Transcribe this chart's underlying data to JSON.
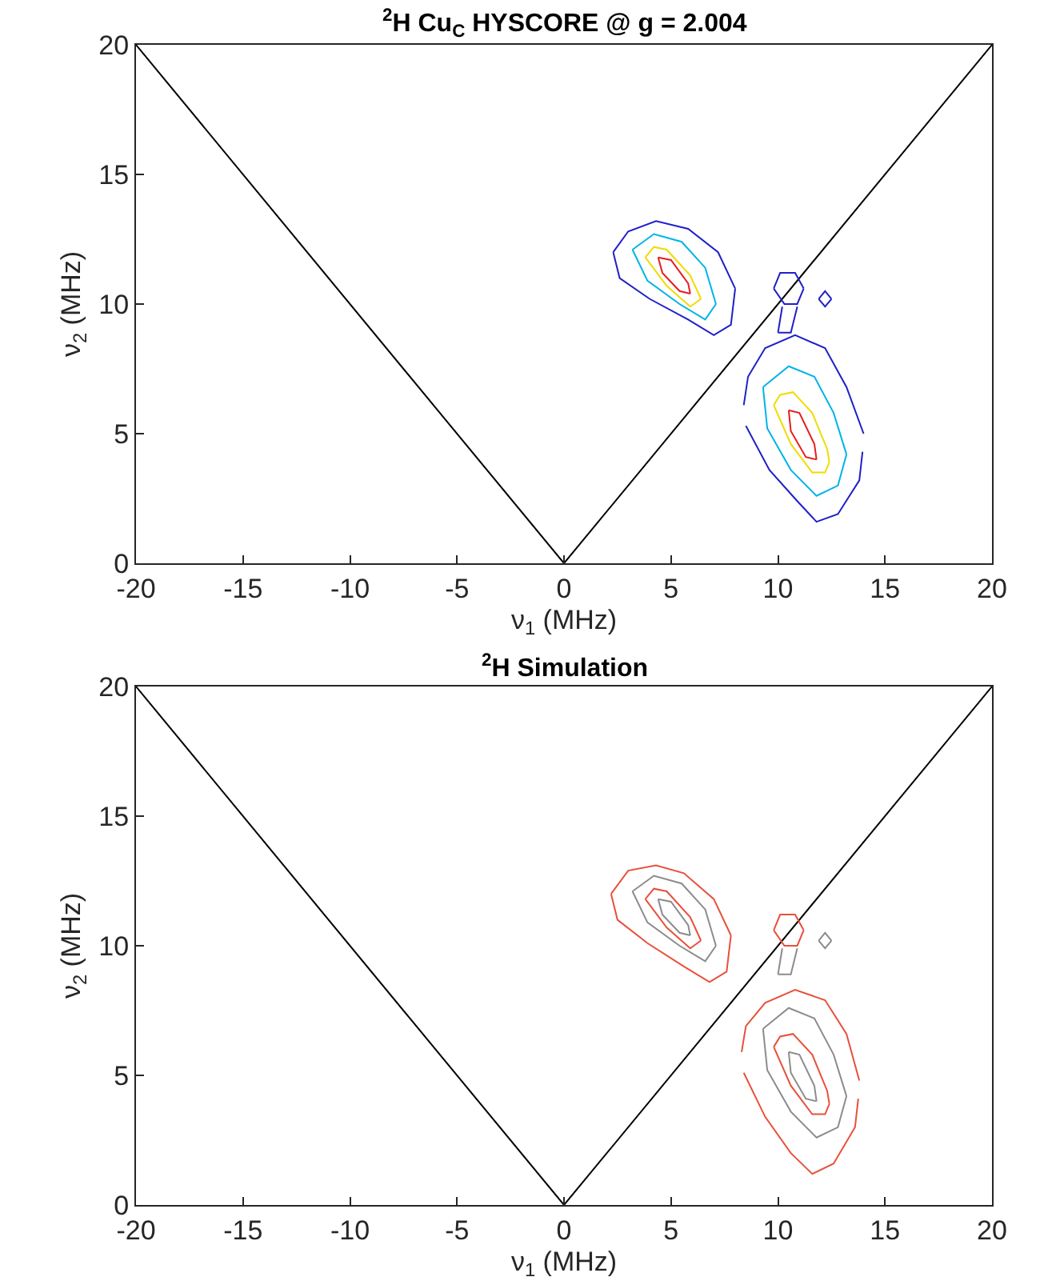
{
  "chart_data": [
    {
      "type": "line",
      "title": "$^{2}$H Cu$_{C}$ HYSCORE @ g = 2.004",
      "xlabel": "ν$_{1}$ (MHz)",
      "ylabel": "ν$_{2}$ (MHz)",
      "xlim": [
        -20,
        20
      ],
      "ylim": [
        0,
        20
      ],
      "xticks": [
        -20,
        -15,
        -10,
        -5,
        0,
        5,
        10,
        15,
        20
      ],
      "yticks": [
        0,
        5,
        10,
        15,
        20
      ],
      "marker": "none",
      "line_style": "solid",
      "series": [
        {
          "color": "#000000",
          "x": [
            -20,
            0,
            20
          ],
          "values": [
            20,
            0,
            20
          ]
        },
        {
          "color": "#2020c8",
          "x": [
            2.3,
            3.0,
            4.3,
            5.8,
            7.2,
            8.0
          ],
          "values": [
            12.0,
            12.8,
            13.2,
            12.9,
            12.0,
            10.6
          ]
        },
        {
          "color": "#2020c8",
          "x": [
            2.3,
            2.6,
            4.0,
            5.8,
            7.0,
            7.8,
            8.0
          ],
          "values": [
            12.0,
            11.0,
            10.2,
            9.4,
            8.8,
            9.2,
            10.6
          ]
        },
        {
          "color": "#00b4e6",
          "x": [
            3.2,
            4.2,
            5.5,
            6.6,
            7.1
          ],
          "values": [
            12.1,
            12.7,
            12.4,
            11.4,
            10.0
          ]
        },
        {
          "color": "#00b4e6",
          "x": [
            3.2,
            3.9,
            5.4,
            6.6,
            7.1
          ],
          "values": [
            12.1,
            10.9,
            10.0,
            9.4,
            10.0
          ]
        },
        {
          "color": "#f0dc00",
          "x": [
            3.8,
            4.2,
            4.8,
            5.9,
            6.4
          ],
          "values": [
            11.8,
            12.2,
            12.1,
            11.1,
            10.2
          ]
        },
        {
          "color": "#f0dc00",
          "x": [
            3.8,
            4.8,
            5.9,
            6.4
          ],
          "values": [
            11.8,
            10.7,
            9.9,
            10.2
          ]
        },
        {
          "color": "#e61e1e",
          "x": [
            4.4,
            5.0,
            5.8,
            5.9
          ],
          "values": [
            11.8,
            11.7,
            10.8,
            10.4
          ]
        },
        {
          "color": "#e61e1e",
          "x": [
            4.4,
            4.6,
            5.4,
            5.9
          ],
          "values": [
            11.8,
            11.2,
            10.5,
            10.4
          ]
        },
        {
          "color": "#2020c8",
          "x": [
            8.4,
            8.6,
            9.4,
            10.8,
            12.2,
            13.2,
            14.0
          ],
          "values": [
            6.1,
            7.2,
            8.3,
            8.8,
            8.3,
            6.8,
            5.0
          ]
        },
        {
          "color": "#2020c8",
          "x": [
            8.5,
            9.6,
            10.9,
            11.8,
            12.8,
            13.8,
            13.95
          ],
          "values": [
            5.3,
            3.6,
            2.4,
            1.6,
            1.9,
            3.2,
            4.3
          ]
        },
        {
          "color": "#00b4e6",
          "x": [
            9.3,
            10.5,
            11.7,
            12.6,
            13.2
          ],
          "values": [
            6.8,
            7.6,
            7.2,
            5.8,
            4.2
          ]
        },
        {
          "color": "#00b4e6",
          "x": [
            9.3,
            9.5,
            10.6,
            11.8,
            12.8,
            13.2
          ],
          "values": [
            6.8,
            5.2,
            3.6,
            2.6,
            3.0,
            4.2
          ]
        },
        {
          "color": "#f0dc00",
          "x": [
            9.8,
            10.1,
            10.7,
            11.6,
            12.3,
            12.4
          ],
          "values": [
            6.1,
            6.5,
            6.6,
            5.8,
            4.4,
            3.9
          ]
        },
        {
          "color": "#f0dc00",
          "x": [
            9.8,
            10.6,
            11.6,
            12.2,
            12.4
          ],
          "values": [
            6.1,
            4.6,
            3.5,
            3.5,
            3.9
          ]
        },
        {
          "color": "#e61e1e",
          "x": [
            10.5,
            11.0,
            11.7,
            11.8
          ],
          "values": [
            5.9,
            5.8,
            4.6,
            4.0
          ]
        },
        {
          "color": "#e61e1e",
          "x": [
            10.5,
            10.6,
            11.3,
            11.8
          ],
          "values": [
            5.9,
            5.1,
            4.1,
            4.0
          ]
        },
        {
          "color": "#2020c8",
          "x": [
            9.8,
            10.1,
            10.8,
            11.2
          ],
          "values": [
            10.6,
            11.2,
            11.2,
            10.6
          ]
        },
        {
          "color": "#2020c8",
          "x": [
            9.8,
            10.3,
            10.9,
            11.2
          ],
          "values": [
            10.6,
            10.0,
            10.0,
            10.6
          ]
        },
        {
          "color": "#2020c8",
          "x": [
            10.0,
            10.2
          ],
          "values": [
            8.9,
            9.9
          ]
        },
        {
          "color": "#2020c8",
          "x": [
            10.0,
            10.6,
            10.9
          ],
          "values": [
            8.9,
            8.9,
            9.9
          ]
        },
        {
          "color": "#2020c8",
          "x": [
            11.9,
            12.2,
            12.5
          ],
          "values": [
            10.2,
            10.5,
            10.2
          ]
        },
        {
          "color": "#2020c8",
          "x": [
            11.9,
            12.2,
            12.5
          ],
          "values": [
            10.2,
            9.9,
            10.2
          ]
        }
      ]
    },
    {
      "type": "line",
      "title": "$^{2}$H Simulation",
      "xlabel": "ν$_{1}$ (MHz)",
      "ylabel": "ν$_{2}$ (MHz)",
      "xlim": [
        -20,
        20
      ],
      "ylim": [
        0,
        20
      ],
      "xticks": [
        -20,
        -15,
        -10,
        -5,
        0,
        5,
        10,
        15,
        20
      ],
      "yticks": [
        0,
        5,
        10,
        15,
        20
      ],
      "marker": "none",
      "line_style": "solid",
      "series": [
        {
          "color": "#000000",
          "x": [
            -20,
            0,
            20
          ],
          "values": [
            20,
            0,
            20
          ]
        },
        {
          "color": "#e8503c",
          "x": [
            2.2,
            3.0,
            4.3,
            5.6,
            7.0,
            7.8
          ],
          "values": [
            12.0,
            12.9,
            13.1,
            12.8,
            11.8,
            10.4
          ]
        },
        {
          "color": "#e8503c",
          "x": [
            2.2,
            2.5,
            3.9,
            5.6,
            6.8,
            7.6,
            7.8
          ],
          "values": [
            12.0,
            11.0,
            10.1,
            9.2,
            8.6,
            9.0,
            10.4
          ]
        },
        {
          "color": "#8c8c8c",
          "x": [
            3.2,
            4.2,
            5.5,
            6.6,
            7.1
          ],
          "values": [
            12.1,
            12.7,
            12.4,
            11.4,
            10.0
          ]
        },
        {
          "color": "#8c8c8c",
          "x": [
            3.2,
            3.9,
            5.4,
            6.6,
            7.1
          ],
          "values": [
            12.1,
            10.9,
            10.0,
            9.4,
            10.0
          ]
        },
        {
          "color": "#e8503c",
          "x": [
            3.8,
            4.2,
            4.8,
            5.9,
            6.4
          ],
          "values": [
            11.8,
            12.2,
            12.1,
            11.1,
            10.2
          ]
        },
        {
          "color": "#e8503c",
          "x": [
            3.8,
            4.8,
            5.9,
            6.4
          ],
          "values": [
            11.8,
            10.7,
            9.9,
            10.2
          ]
        },
        {
          "color": "#8c8c8c",
          "x": [
            4.4,
            5.0,
            5.8,
            5.9
          ],
          "values": [
            11.8,
            11.7,
            10.8,
            10.4
          ]
        },
        {
          "color": "#8c8c8c",
          "x": [
            4.4,
            4.6,
            5.4,
            5.9
          ],
          "values": [
            11.8,
            11.2,
            10.5,
            10.4
          ]
        },
        {
          "color": "#e8503c",
          "x": [
            8.3,
            8.5,
            9.4,
            10.8,
            12.2,
            13.2,
            13.8
          ],
          "values": [
            5.9,
            6.9,
            7.8,
            8.3,
            7.9,
            6.6,
            4.8
          ]
        },
        {
          "color": "#e8503c",
          "x": [
            8.4,
            9.4,
            10.6,
            11.6,
            12.6,
            13.6,
            13.75
          ],
          "values": [
            5.1,
            3.4,
            2.0,
            1.2,
            1.6,
            3.0,
            4.1
          ]
        },
        {
          "color": "#8c8c8c",
          "x": [
            9.3,
            10.5,
            11.7,
            12.6,
            13.2
          ],
          "values": [
            6.8,
            7.6,
            7.2,
            5.8,
            4.2
          ]
        },
        {
          "color": "#8c8c8c",
          "x": [
            9.3,
            9.5,
            10.6,
            11.8,
            12.8,
            13.2
          ],
          "values": [
            6.8,
            5.2,
            3.6,
            2.6,
            3.0,
            4.2
          ]
        },
        {
          "color": "#e8503c",
          "x": [
            9.8,
            10.1,
            10.7,
            11.6,
            12.3,
            12.4
          ],
          "values": [
            6.1,
            6.5,
            6.6,
            5.8,
            4.4,
            3.9
          ]
        },
        {
          "color": "#e8503c",
          "x": [
            9.8,
            10.6,
            11.6,
            12.2,
            12.4
          ],
          "values": [
            6.1,
            4.6,
            3.5,
            3.5,
            3.9
          ]
        },
        {
          "color": "#8c8c8c",
          "x": [
            10.5,
            11.0,
            11.7,
            11.8
          ],
          "values": [
            5.9,
            5.8,
            4.6,
            4.0
          ]
        },
        {
          "color": "#8c8c8c",
          "x": [
            10.5,
            10.6,
            11.3,
            11.8
          ],
          "values": [
            5.9,
            5.1,
            4.1,
            4.0
          ]
        },
        {
          "color": "#e8503c",
          "x": [
            9.8,
            10.1,
            10.8,
            11.2
          ],
          "values": [
            10.6,
            11.2,
            11.2,
            10.6
          ]
        },
        {
          "color": "#e8503c",
          "x": [
            9.8,
            10.3,
            10.9,
            11.2
          ],
          "values": [
            10.6,
            10.0,
            10.0,
            10.6
          ]
        },
        {
          "color": "#8c8c8c",
          "x": [
            10.0,
            10.2
          ],
          "values": [
            8.9,
            9.9
          ]
        },
        {
          "color": "#8c8c8c",
          "x": [
            10.0,
            10.6,
            10.9
          ],
          "values": [
            8.9,
            8.9,
            9.9
          ]
        },
        {
          "color": "#8c8c8c",
          "x": [
            11.9,
            12.2,
            12.5
          ],
          "values": [
            10.2,
            10.5,
            10.2
          ]
        },
        {
          "color": "#8c8c8c",
          "x": [
            11.9,
            12.2,
            12.5
          ],
          "values": [
            10.2,
            9.9,
            10.2
          ]
        }
      ]
    }
  ]
}
